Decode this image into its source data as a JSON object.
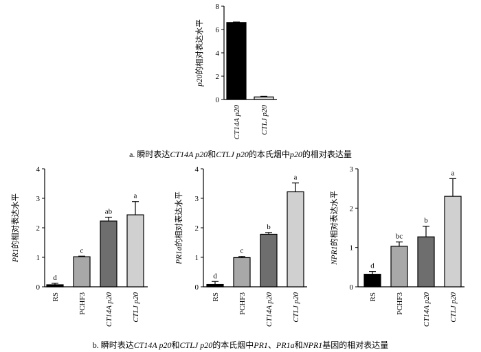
{
  "panel_a": {
    "caption": [
      {
        "text": "a.  瞬时表达",
        "italic": false
      },
      {
        "text": "CT14A p20",
        "italic": true
      },
      {
        "text": "和",
        "italic": false
      },
      {
        "text": "CTLJ p20",
        "italic": true
      },
      {
        "text": "的本氏烟中",
        "italic": false
      },
      {
        "text": "p20",
        "italic": true
      },
      {
        "text": "的相对表达量",
        "italic": false
      }
    ]
  },
  "panel_b": {
    "caption": [
      {
        "text": "b.  瞬时表达",
        "italic": false
      },
      {
        "text": "CT14A p20",
        "italic": true
      },
      {
        "text": "和",
        "italic": false
      },
      {
        "text": "CTLJ p20",
        "italic": true
      },
      {
        "text": "的本氏烟中",
        "italic": false
      },
      {
        "text": "PR1",
        "italic": true
      },
      {
        "text": "、",
        "italic": false
      },
      {
        "text": "PR1a",
        "italic": true
      },
      {
        "text": "和",
        "italic": false
      },
      {
        "text": "NPR1",
        "italic": true
      },
      {
        "text": "基因的相对表达量",
        "italic": false
      }
    ]
  },
  "chart_data": [
    {
      "type": "bar",
      "panel": "a",
      "ylabel": [
        {
          "text": "p20",
          "italic": true
        },
        {
          "text": "的相对表达水平",
          "italic": false
        }
      ],
      "ylim": [
        0,
        8
      ],
      "yticks": [
        0,
        2,
        4,
        6,
        8
      ],
      "categories": [
        {
          "label": "CT14A p20",
          "italic": true
        },
        {
          "label": "CTLJ p20",
          "italic": true
        }
      ],
      "values": [
        6.6,
        0.22
      ],
      "errors": [
        0.04,
        0.05
      ],
      "letters": [
        "",
        ""
      ],
      "colors": [
        "#000000",
        "#dcdcdc"
      ]
    },
    {
      "type": "bar",
      "panel": "b1",
      "ylabel": [
        {
          "text": "PR1",
          "italic": true
        },
        {
          "text": "的相对表达水平",
          "italic": false
        }
      ],
      "ylim": [
        0,
        4
      ],
      "yticks": [
        0,
        1,
        2,
        3,
        4
      ],
      "categories": [
        {
          "label": "RS",
          "italic": false
        },
        {
          "label": "PCHF3",
          "italic": false
        },
        {
          "label": "CT14A p20",
          "italic": true
        },
        {
          "label": "CTLJ p20",
          "italic": true
        }
      ],
      "values": [
        0.07,
        1.02,
        2.23,
        2.44
      ],
      "errors": [
        0.05,
        0.02,
        0.13,
        0.45
      ],
      "letters": [
        "d",
        "c",
        "ab",
        "a"
      ],
      "colors": [
        "#000000",
        "#a8a8a8",
        "#6e6e6e",
        "#d0d0d0"
      ]
    },
    {
      "type": "bar",
      "panel": "b2",
      "ylabel": [
        {
          "text": "PR1a",
          "italic": true
        },
        {
          "text": "的相对表达水平",
          "italic": false
        }
      ],
      "ylim": [
        0,
        4
      ],
      "yticks": [
        0,
        1,
        2,
        3,
        4
      ],
      "categories": [
        {
          "label": "RS",
          "italic": false
        },
        {
          "label": "PCHF3",
          "italic": false
        },
        {
          "label": "CT14A p20",
          "italic": true
        },
        {
          "label": "CTLJ p20",
          "italic": true
        }
      ],
      "values": [
        0.08,
        0.99,
        1.78,
        3.22
      ],
      "errors": [
        0.1,
        0.04,
        0.06,
        0.3
      ],
      "letters": [
        "d",
        "c",
        "b",
        "a"
      ],
      "colors": [
        "#000000",
        "#a8a8a8",
        "#6e6e6e",
        "#d0d0d0"
      ]
    },
    {
      "type": "bar",
      "panel": "b3",
      "ylabel": [
        {
          "text": "NPR1",
          "italic": true
        },
        {
          "text": "的相对表达水平",
          "italic": false
        }
      ],
      "ylim": [
        0,
        3
      ],
      "yticks": [
        0,
        1,
        2,
        3
      ],
      "categories": [
        {
          "label": "RS",
          "italic": false
        },
        {
          "label": "PCHF3",
          "italic": false
        },
        {
          "label": "CT14A p20",
          "italic": true
        },
        {
          "label": "CTLJ p20",
          "italic": true
        }
      ],
      "values": [
        0.32,
        1.03,
        1.27,
        2.3
      ],
      "errors": [
        0.07,
        0.11,
        0.27,
        0.45
      ],
      "letters": [
        "d",
        "bc",
        "b",
        "a"
      ],
      "colors": [
        "#000000",
        "#a8a8a8",
        "#6e6e6e",
        "#d0d0d0"
      ]
    }
  ]
}
